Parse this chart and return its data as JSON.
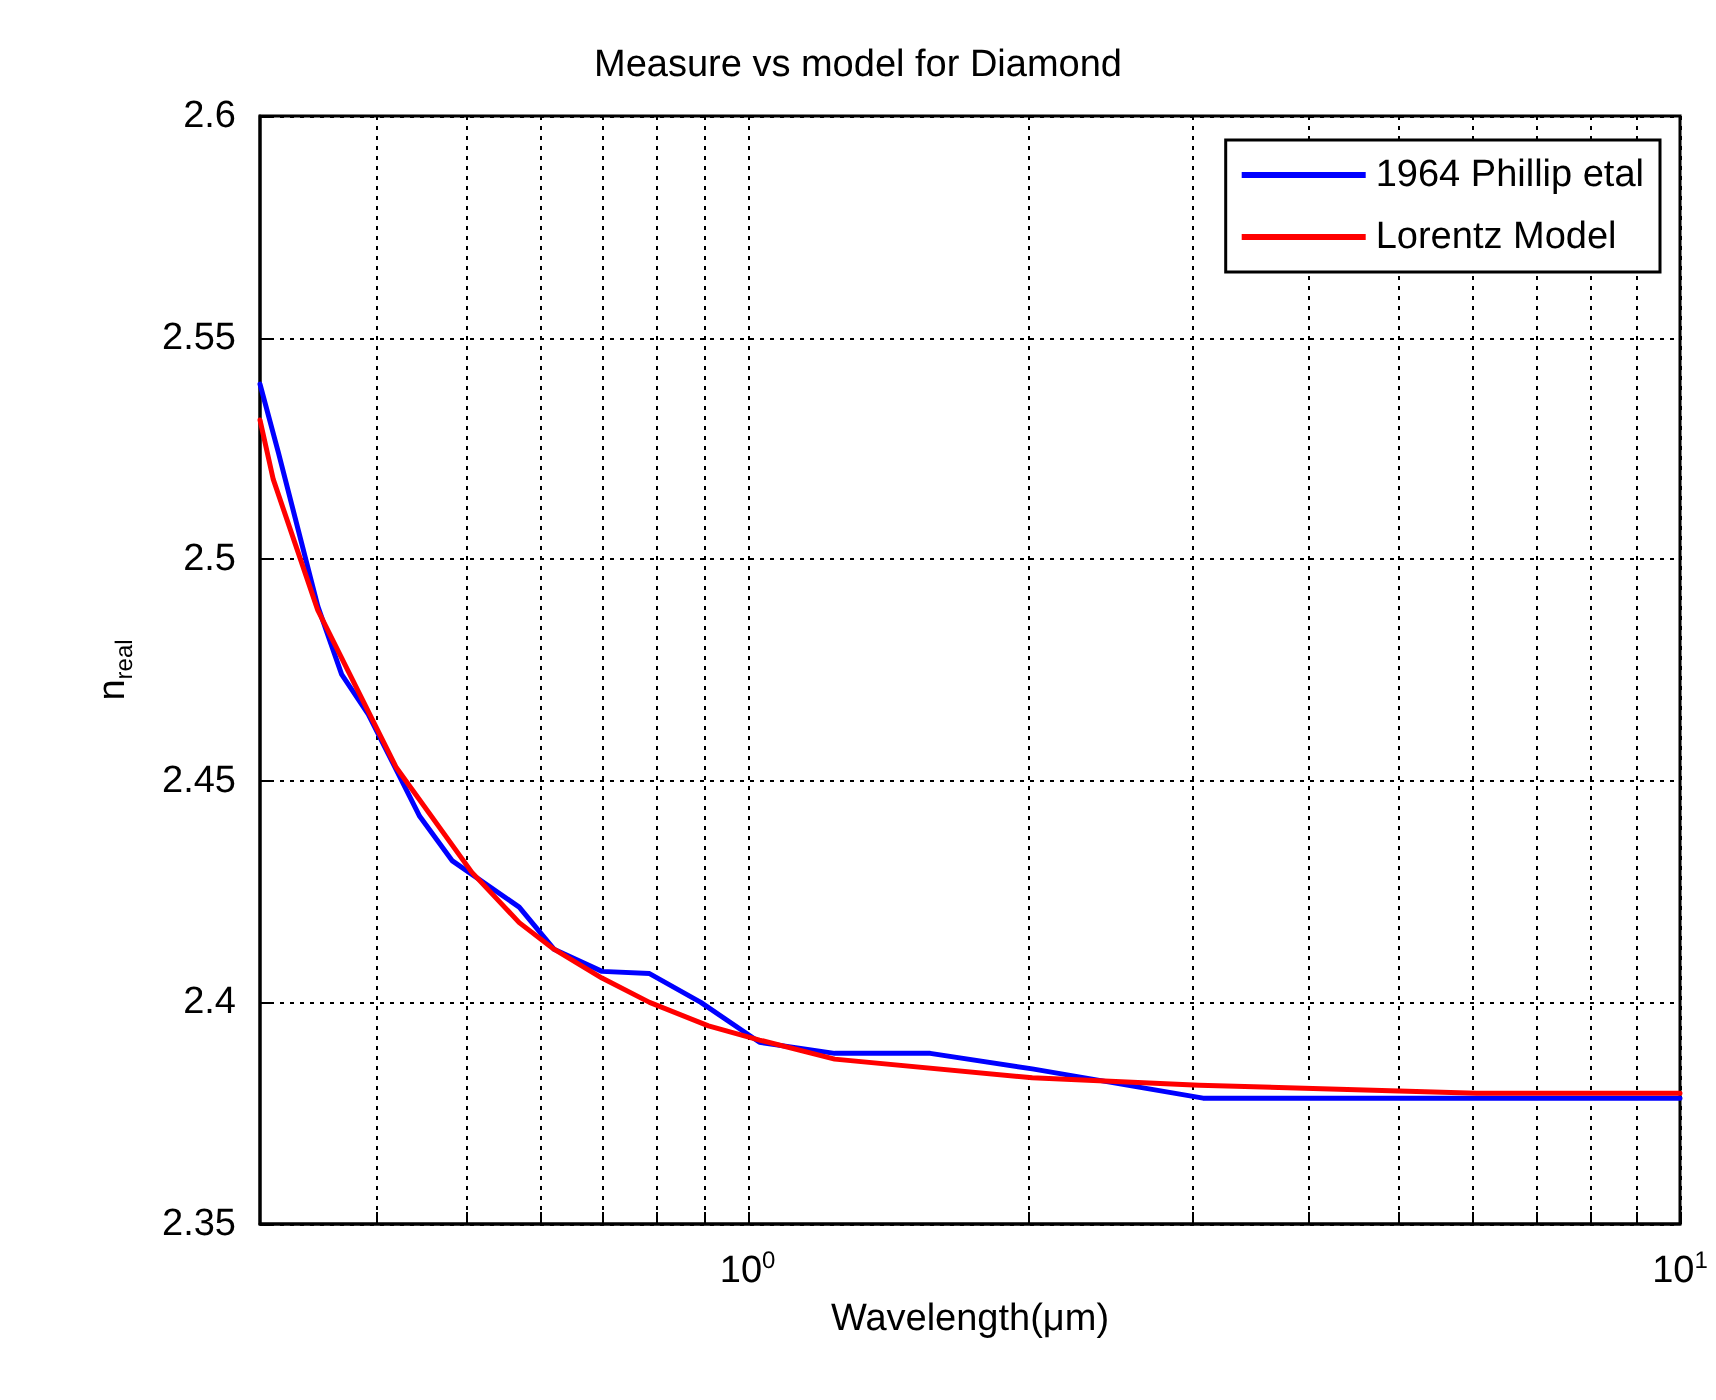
{
  "chart_data": {
    "type": "line",
    "title": "Measure vs model for Diamond",
    "xlabel": "Wavelength(μm)",
    "ylabel": "n$_{real}$",
    "log": "x",
    "grid": true,
    "legend": "top right",
    "line_style": "solid",
    "marker": "none",
    "xlim": [
      0.3,
      10
    ],
    "ylim": [
      2.35,
      2.6
    ],
    "xticks": [
      {
        "value": 0.4,
        "label": null
      },
      {
        "value": 0.5,
        "label": null
      },
      {
        "value": 0.6,
        "label": null
      },
      {
        "value": 0.7,
        "label": null
      },
      {
        "value": 0.8,
        "label": null
      },
      {
        "value": 0.9,
        "label": null
      },
      {
        "value": 1,
        "label": "10$^{0}$"
      },
      {
        "value": 2,
        "label": null
      },
      {
        "value": 3,
        "label": null
      },
      {
        "value": 4,
        "label": null
      },
      {
        "value": 5,
        "label": null
      },
      {
        "value": 6,
        "label": null
      },
      {
        "value": 7,
        "label": null
      },
      {
        "value": 8,
        "label": null
      },
      {
        "value": 9,
        "label": null
      },
      {
        "value": 10,
        "label": "10$^{1}$"
      }
    ],
    "yticks": [
      2.35,
      2.4,
      2.45,
      2.5,
      2.55,
      2.6
    ],
    "series": [
      {
        "name": "1964 Phillip etal",
        "color": "#0000ff",
        "x": [
          0.3,
          0.314,
          0.346,
          0.367,
          0.392,
          0.445,
          0.482,
          0.569,
          0.62,
          0.698,
          0.785,
          0.891,
          1.03,
          1.24,
          1.57,
          2.02,
          3.08,
          10
        ],
        "values": [
          2.5395,
          2.524,
          2.4894,
          2.474,
          2.465,
          2.442,
          2.432,
          2.4215,
          2.412,
          2.407,
          2.4065,
          2.4,
          2.391,
          2.3885,
          2.3885,
          2.385,
          2.3784,
          2.3784
        ]
      },
      {
        "name": "Lorentz Model",
        "color": "#ff0000",
        "x": [
          0.3,
          0.31,
          0.346,
          0.42,
          0.506,
          0.569,
          0.62,
          0.698,
          0.785,
          0.908,
          1.03,
          1.24,
          2.02,
          3.05,
          6.05,
          10
        ],
        "values": [
          2.5314,
          2.518,
          2.4885,
          2.453,
          2.4294,
          2.418,
          2.412,
          2.4055,
          2.4,
          2.3947,
          2.3915,
          2.3872,
          2.383,
          2.3813,
          2.3795,
          2.3795
        ]
      }
    ]
  }
}
